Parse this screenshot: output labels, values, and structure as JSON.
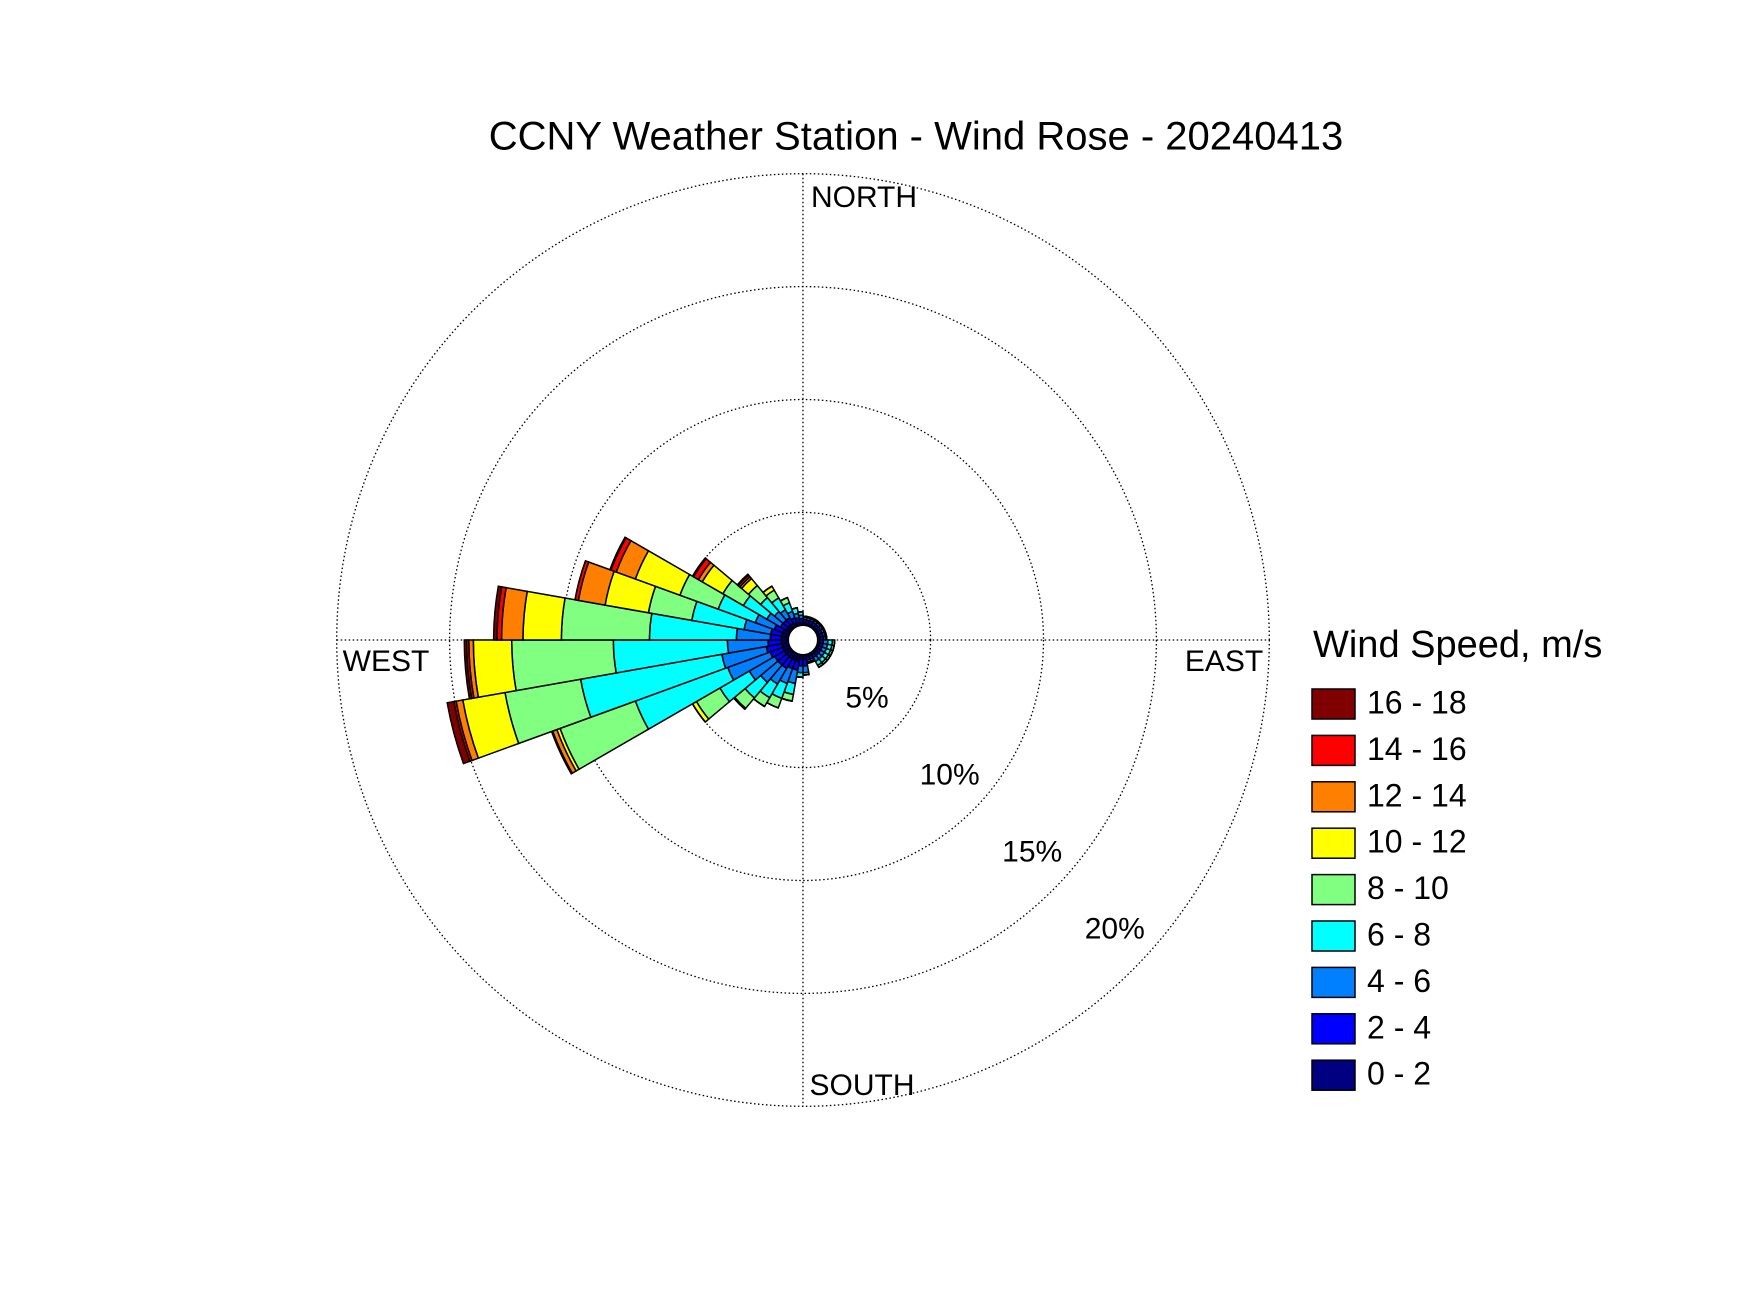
{
  "chart_data": {
    "type": "windrose",
    "title": "CCNY Weather Station - Wind Rose - 20240413",
    "direction_labels": {
      "north": "NORTH",
      "east": "EAST",
      "south": "SOUTH",
      "west": "WEST"
    },
    "legend_title": "Wind Speed, m/s",
    "x": [
      5,
      15,
      25,
      35,
      45,
      55,
      65,
      75,
      85,
      95,
      105,
      115,
      125,
      135,
      145,
      155,
      165,
      175,
      185,
      195,
      205,
      215,
      225,
      235,
      245,
      255,
      265,
      275,
      285,
      295,
      305,
      315,
      325,
      335,
      345,
      355
    ],
    "rlim": [
      0,
      20
    ],
    "rticks": [
      {
        "value": 5,
        "label": "5%"
      },
      {
        "value": 10,
        "label": "10%"
      },
      {
        "value": 15,
        "label": "15%"
      },
      {
        "value": 20,
        "label": "20%"
      }
    ],
    "grid": true,
    "series": [
      {
        "name": "0 - 2",
        "color": "#000080",
        "values": [
          0.1,
          0.1,
          0.1,
          0.1,
          0.1,
          0.1,
          0.1,
          0.1,
          0.1,
          0.1,
          0.1,
          0.1,
          0.1,
          0.1,
          0.1,
          0.1,
          0.1,
          0.2,
          0.2,
          0.3,
          0.3,
          0.3,
          0.3,
          0.3,
          0.3,
          0.3,
          0.3,
          0.3,
          0.3,
          0.3,
          0.2,
          0.2,
          0.2,
          0.15,
          0.15,
          0.1
        ]
      },
      {
        "name": "2 - 4",
        "color": "#0000ff",
        "values": [
          0.15,
          0.15,
          0.15,
          0.15,
          0.15,
          0.15,
          0.15,
          0.15,
          0.15,
          0.15,
          0.15,
          0.15,
          0.15,
          0.15,
          0.15,
          0.15,
          0.15,
          0.3,
          0.3,
          0.4,
          0.4,
          0.5,
          0.5,
          0.5,
          0.6,
          0.7,
          0.6,
          0.5,
          0.5,
          0.4,
          0.3,
          0.3,
          0.3,
          0.25,
          0.2,
          0.2
        ]
      },
      {
        "name": "4 - 6",
        "color": "#0080ff",
        "values": [
          0.1,
          0.1,
          0.1,
          0.1,
          0.1,
          0.1,
          0.1,
          0.1,
          0.1,
          0.2,
          0.2,
          0.2,
          0.2,
          0.2,
          0.2,
          0.1,
          0.1,
          0.3,
          0.3,
          0.6,
          0.7,
          0.8,
          1.0,
          1.3,
          2.0,
          2.0,
          1.8,
          1.5,
          1.2,
          0.9,
          0.7,
          0.5,
          0.4,
          0.3,
          0.2,
          0.15
        ]
      },
      {
        "name": "6 - 8",
        "color": "#00ffff",
        "values": [
          0.05,
          0.05,
          0.05,
          0.05,
          0.05,
          0.05,
          0.05,
          0.05,
          0.05,
          0.2,
          0.2,
          0.2,
          0.2,
          0.2,
          0.2,
          0.05,
          0.05,
          0.1,
          0.2,
          0.5,
          0.7,
          0.7,
          0.9,
          1.5,
          4.35,
          6.35,
          5.05,
          3.85,
          2.35,
          1.75,
          1.2,
          0.8,
          0.6,
          0.4,
          0.25,
          0.15
        ]
      },
      {
        "name": "8 - 10",
        "color": "#80ff80",
        "values": [
          0,
          0,
          0,
          0,
          0,
          0,
          0,
          0,
          0,
          0.1,
          0.1,
          0.1,
          0.1,
          0.1,
          0.1,
          0,
          0,
          0,
          0,
          0.3,
          0.45,
          0.45,
          0.6,
          1.2,
          3.55,
          3.4,
          4.5,
          3.9,
          1.95,
          1.8,
          1.05,
          0.7,
          0.4,
          0.25,
          0,
          0
        ]
      },
      {
        "name": "10 - 12",
        "color": "#ffff00",
        "values": [
          0,
          0,
          0,
          0,
          0,
          0,
          0,
          0,
          0,
          0,
          0,
          0,
          0,
          0,
          0,
          0,
          0,
          0,
          0,
          0,
          0,
          0,
          0.05,
          0.2,
          0.15,
          1.9,
          1.7,
          1.7,
          1.95,
          2.1,
          1.05,
          0.4,
          0.2,
          0,
          0,
          0
        ]
      },
      {
        "name": "12 - 14",
        "color": "#ff8000",
        "values": [
          0,
          0,
          0,
          0,
          0,
          0,
          0,
          0,
          0,
          0,
          0,
          0,
          0,
          0,
          0,
          0,
          0,
          0,
          0,
          0,
          0,
          0,
          0,
          0,
          0.2,
          0.3,
          0.2,
          0.95,
          1.2,
          0.9,
          0.2,
          0.1,
          0,
          0,
          0,
          0
        ]
      },
      {
        "name": "14 - 16",
        "color": "#ff0000",
        "values": [
          0,
          0,
          0,
          0,
          0,
          0,
          0,
          0,
          0,
          0,
          0,
          0,
          0,
          0,
          0,
          0,
          0,
          0,
          0,
          0,
          0,
          0,
          0,
          0,
          0,
          0.1,
          0.1,
          0.2,
          0.15,
          0.25,
          0.25,
          0.1,
          0,
          0,
          0,
          0
        ]
      },
      {
        "name": "16 - 18",
        "color": "#800000",
        "values": [
          0,
          0,
          0,
          0,
          0,
          0,
          0,
          0,
          0,
          0,
          0,
          0,
          0,
          0,
          0,
          0,
          0,
          0,
          0,
          0,
          0,
          0,
          0,
          0,
          0.05,
          0.3,
          0.1,
          0.15,
          0,
          0.05,
          0.05,
          0.05,
          0,
          0,
          0,
          0
        ]
      }
    ]
  }
}
